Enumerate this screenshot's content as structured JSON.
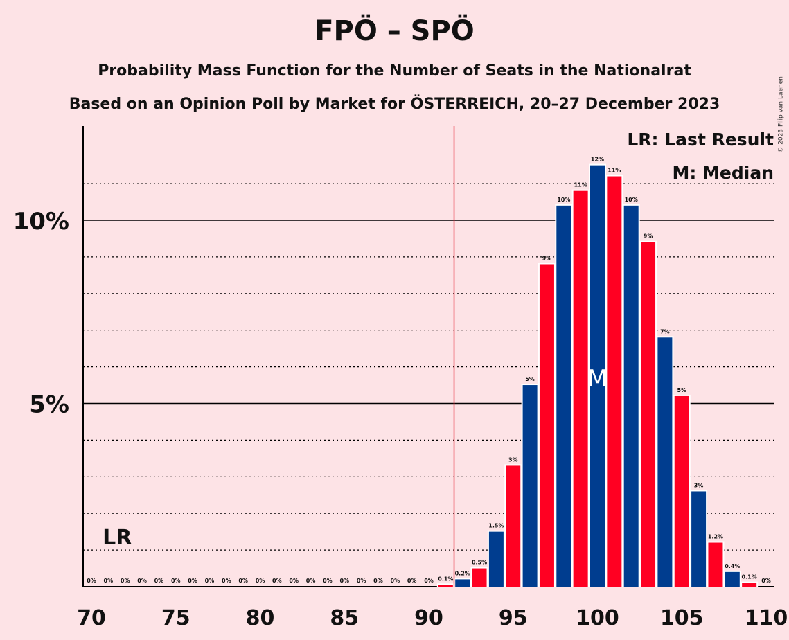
{
  "title": "FPÖ – SPÖ",
  "subtitle_1": "Probability Mass Function for the Number of Seats in the Nationalrat",
  "subtitle_2": "Based on an Opinion Poll by Market for ÖSTERREICH, 20–27 December 2023",
  "copyright": "© 2023 Filip van Laenen",
  "legend": {
    "last_result": "LR: Last Result",
    "median": "M: Median"
  },
  "colors": {
    "background": "#fde3e6",
    "red": "#ff0022",
    "blue": "#003d8f",
    "lr_line": "#e8323f"
  },
  "chart_data": {
    "type": "bar",
    "x": [
      70,
      71,
      72,
      73,
      74,
      75,
      76,
      77,
      78,
      79,
      80,
      81,
      82,
      83,
      84,
      85,
      86,
      87,
      88,
      89,
      90,
      91,
      92,
      93,
      94,
      95,
      96,
      97,
      98,
      99,
      100,
      101,
      102,
      103,
      104,
      105,
      106,
      107,
      108,
      109,
      110
    ],
    "values": [
      0,
      0,
      0,
      0,
      0,
      0,
      0,
      0,
      0,
      0,
      0,
      0,
      0,
      0,
      0,
      0,
      0,
      0,
      0,
      0,
      0,
      0.05,
      0.2,
      0.5,
      1.5,
      3.3,
      5.5,
      8.8,
      10.4,
      10.8,
      11.5,
      11.2,
      10.4,
      9.4,
      6.8,
      5.2,
      2.6,
      1.2,
      0.4,
      0.1,
      0
    ],
    "labels": [
      "0%",
      "0%",
      "0%",
      "0%",
      "0%",
      "0%",
      "0%",
      "0%",
      "0%",
      "0%",
      "0%",
      "0%",
      "0%",
      "0%",
      "0%",
      "0%",
      "0%",
      "0%",
      "0%",
      "0%",
      "0%",
      "0.1%",
      "0.2%",
      "0.5%",
      "1.5%",
      "3%",
      "5%",
      "9%",
      "10%",
      "11%",
      "12%",
      "11%",
      "10%",
      "9%",
      "7%",
      "5%",
      "3%",
      "1.2%",
      "0.4%",
      "0.1%",
      "0%"
    ],
    "xticks": [
      70,
      75,
      80,
      85,
      90,
      95,
      100,
      105,
      110
    ],
    "xtick_labels": [
      "70",
      "75",
      "80",
      "85",
      "90",
      "95",
      "100",
      "105",
      "110"
    ],
    "yticks": [
      5,
      10
    ],
    "ytick_labels": [
      "5%",
      "10%"
    ],
    "ylim": [
      0,
      12.5
    ],
    "xlim": [
      70,
      110
    ],
    "last_result": 91.5,
    "last_result_label": "LR",
    "median": 100,
    "median_label": "M",
    "grid": "dotted every 1%, solid at 5% and 10%"
  }
}
